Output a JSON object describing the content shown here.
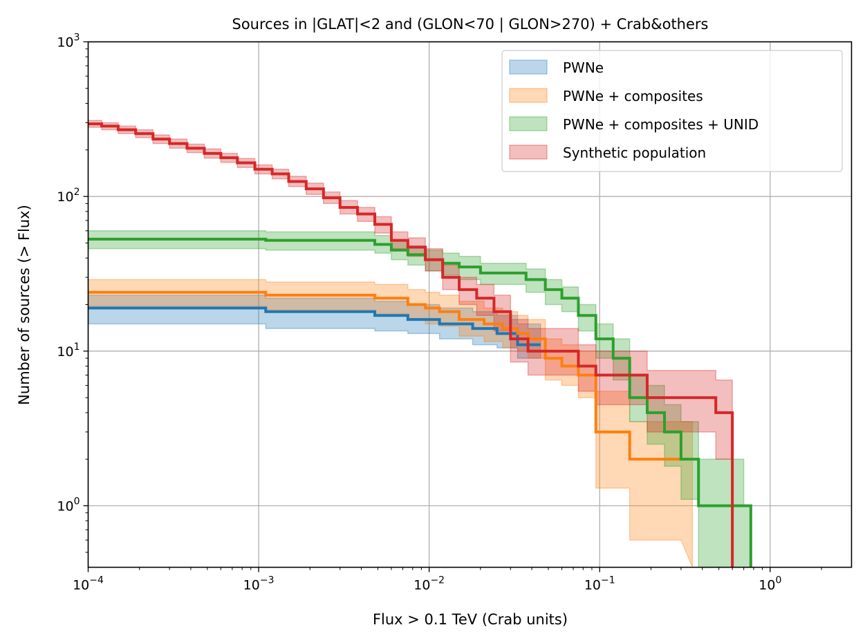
{
  "chart_data": {
    "type": "line",
    "title": "Sources in |GLAT|<2 and (GLON<70 | GLON>270) + Crab&others",
    "xlabel": "Flux > 0.1 TeV (Crab units)",
    "ylabel": "Number of sources (> Flux)",
    "xscale": "log",
    "yscale": "log",
    "xlim": [
      0.0001,
      3.0
    ],
    "ylim": [
      0.4,
      1000
    ],
    "grid": true,
    "legend_position": "top-right",
    "x_ticks": [
      {
        "value": 0.0001,
        "base": "10",
        "exp": "−4"
      },
      {
        "value": 0.001,
        "base": "10",
        "exp": "−3"
      },
      {
        "value": 0.01,
        "base": "10",
        "exp": "−2"
      },
      {
        "value": 0.1,
        "base": "10",
        "exp": "−1"
      },
      {
        "value": 1,
        "base": "10",
        "exp": "0"
      }
    ],
    "y_ticks": [
      {
        "value": 1,
        "base": "10",
        "exp": "0"
      },
      {
        "value": 10,
        "base": "10",
        "exp": "1"
      },
      {
        "value": 100,
        "base": "10",
        "exp": "2"
      },
      {
        "value": 1000,
        "base": "10",
        "exp": "3"
      }
    ],
    "series": [
      {
        "name": "PWNe",
        "color": "#1f77b4",
        "line_x": [
          0.0001,
          0.0011,
          0.0011,
          0.0048,
          0.0048,
          0.0075,
          0.0075,
          0.0115,
          0.0115,
          0.018,
          0.018,
          0.025,
          0.025,
          0.033,
          0.033,
          0.045
        ],
        "line_y": [
          19,
          19,
          18,
          18,
          17,
          17,
          16,
          16,
          15,
          15,
          14,
          14,
          13,
          13,
          11,
          11
        ],
        "band_x": [
          0.0001,
          0.0011,
          0.0011,
          0.0048,
          0.0048,
          0.0075,
          0.0075,
          0.0115,
          0.0115,
          0.018,
          0.018,
          0.025,
          0.025,
          0.033,
          0.033,
          0.045
        ],
        "band_upper": [
          23,
          23,
          22,
          22,
          21,
          21,
          20,
          20,
          19,
          19,
          18,
          18,
          17,
          17,
          15,
          15
        ],
        "band_lower": [
          15,
          15,
          14,
          14,
          13.5,
          13.5,
          13,
          13,
          12,
          12,
          11,
          11,
          10.5,
          10.5,
          9,
          9
        ]
      },
      {
        "name": "PWNe + composites",
        "color": "#ff7f0e",
        "line_x": [
          0.0001,
          0.0011,
          0.0011,
          0.0048,
          0.0048,
          0.0075,
          0.0075,
          0.0095,
          0.0095,
          0.0115,
          0.0115,
          0.015,
          0.015,
          0.021,
          0.021,
          0.027,
          0.027,
          0.033,
          0.033,
          0.038,
          0.038,
          0.048,
          0.048,
          0.06,
          0.06,
          0.075,
          0.075,
          0.095,
          0.095,
          0.15,
          0.15,
          0.3
        ],
        "line_y": [
          24,
          24,
          23,
          23,
          22,
          22,
          20,
          20,
          19,
          19,
          18,
          18,
          16,
          16,
          15,
          15,
          14,
          14,
          13,
          13,
          12,
          12,
          9,
          9,
          8,
          8,
          7,
          7,
          3,
          3,
          2,
          2
        ],
        "band_x": [
          0.0001,
          0.0011,
          0.0011,
          0.0048,
          0.0048,
          0.0075,
          0.0075,
          0.0095,
          0.0095,
          0.0115,
          0.0115,
          0.015,
          0.015,
          0.021,
          0.021,
          0.027,
          0.027,
          0.033,
          0.033,
          0.038,
          0.038,
          0.048,
          0.048,
          0.06,
          0.06,
          0.075,
          0.075,
          0.095,
          0.095,
          0.15,
          0.15,
          0.3,
          0.35
        ],
        "band_upper": [
          29,
          29,
          28,
          28,
          27,
          27,
          25,
          25,
          24,
          24,
          23,
          23,
          21,
          21,
          19,
          19,
          18,
          18,
          17,
          17,
          16,
          16,
          12,
          12,
          11,
          11,
          10,
          10,
          5.5,
          5.5,
          3.5,
          3.5,
          3.5
        ],
        "band_lower": [
          19.5,
          19.5,
          18.5,
          18.5,
          17.5,
          17.5,
          16,
          16,
          15,
          15,
          14.5,
          14.5,
          12.5,
          12.5,
          11.5,
          11.5,
          10.5,
          10.5,
          10,
          10,
          9,
          9,
          6.5,
          6.5,
          6,
          6,
          5,
          5,
          1.3,
          1.3,
          0.6,
          0.6,
          0.4
        ]
      },
      {
        "name": "PWNe + composites + UNID",
        "color": "#2ca02c",
        "line_x": [
          0.0001,
          0.0011,
          0.0011,
          0.0048,
          0.0048,
          0.006,
          0.006,
          0.0075,
          0.0075,
          0.0095,
          0.0095,
          0.012,
          0.012,
          0.015,
          0.015,
          0.02,
          0.02,
          0.037,
          0.037,
          0.048,
          0.048,
          0.06,
          0.06,
          0.075,
          0.075,
          0.095,
          0.095,
          0.12,
          0.12,
          0.15,
          0.15,
          0.19,
          0.19,
          0.24,
          0.24,
          0.3,
          0.3,
          0.38,
          0.38,
          0.77,
          0.77
        ],
        "line_y": [
          53,
          53,
          52,
          52,
          49,
          49,
          45,
          45,
          42,
          42,
          39,
          39,
          37,
          37,
          35,
          35,
          32,
          32,
          29,
          29,
          25,
          25,
          22,
          22,
          17,
          17,
          12,
          12,
          9,
          9,
          5,
          5,
          4,
          4,
          3,
          3,
          2,
          2,
          1,
          1,
          0.4
        ],
        "band_x": [
          0.0001,
          0.0011,
          0.0011,
          0.0048,
          0.0048,
          0.006,
          0.006,
          0.0075,
          0.0075,
          0.0095,
          0.0095,
          0.012,
          0.012,
          0.015,
          0.015,
          0.02,
          0.02,
          0.037,
          0.037,
          0.048,
          0.048,
          0.06,
          0.06,
          0.075,
          0.075,
          0.095,
          0.095,
          0.12,
          0.12,
          0.15,
          0.15,
          0.19,
          0.19,
          0.24,
          0.24,
          0.3,
          0.3,
          0.38,
          0.38,
          0.7,
          0.7,
          0.77
        ],
        "band_upper": [
          60,
          60,
          59,
          59,
          56,
          56,
          52,
          52,
          48,
          48,
          45,
          45,
          43,
          43,
          41,
          41,
          37,
          37,
          34,
          34,
          29,
          29,
          26,
          26,
          20,
          20,
          15,
          15,
          12,
          12,
          7,
          7,
          6,
          6,
          4.5,
          4.5,
          3.5,
          3.5,
          2,
          2,
          1,
          1
        ],
        "band_lower": [
          46,
          46,
          45,
          45,
          43,
          43,
          39,
          39,
          36,
          36,
          33,
          33,
          31,
          31,
          29,
          29,
          27,
          27,
          24,
          24,
          20,
          20,
          18,
          18,
          13.5,
          13.5,
          9,
          9,
          6.5,
          6.5,
          3.5,
          3.5,
          2.5,
          2.5,
          1.8,
          1.8,
          1.1,
          1.1,
          0.4,
          0.4,
          0.4,
          0.4
        ]
      },
      {
        "name": "Synthetic population",
        "color": "#d62728",
        "line_x": [
          0.0001,
          0.00012,
          0.00012,
          0.00015,
          0.00015,
          0.00019,
          0.00019,
          0.00024,
          0.00024,
          0.0003,
          0.0003,
          0.00038,
          0.00038,
          0.00048,
          0.00048,
          0.0006,
          0.0006,
          0.00075,
          0.00075,
          0.00095,
          0.00095,
          0.0012,
          0.0012,
          0.0015,
          0.0015,
          0.0019,
          0.0019,
          0.0024,
          0.0024,
          0.003,
          0.003,
          0.0038,
          0.0038,
          0.0048,
          0.0048,
          0.006,
          0.006,
          0.0075,
          0.0075,
          0.0095,
          0.0095,
          0.012,
          0.012,
          0.015,
          0.015,
          0.019,
          0.019,
          0.024,
          0.024,
          0.03,
          0.03,
          0.038,
          0.038,
          0.075,
          0.075,
          0.095,
          0.095,
          0.19,
          0.19,
          0.48,
          0.48,
          0.6,
          0.6
        ],
        "line_y": [
          295,
          295,
          285,
          285,
          270,
          270,
          255,
          255,
          235,
          235,
          220,
          220,
          205,
          205,
          190,
          190,
          178,
          178,
          165,
          165,
          150,
          150,
          140,
          140,
          125,
          125,
          112,
          112,
          98,
          98,
          85,
          85,
          77,
          77,
          66,
          66,
          52,
          52,
          47,
          47,
          39,
          39,
          30,
          30,
          25,
          25,
          22,
          22,
          18,
          18,
          12,
          12,
          10,
          10,
          8,
          8,
          7,
          7,
          5,
          5,
          4,
          4,
          0.4
        ],
        "band_x": [
          0.0001,
          0.00012,
          0.00012,
          0.00015,
          0.00015,
          0.00019,
          0.00019,
          0.00024,
          0.00024,
          0.0003,
          0.0003,
          0.00038,
          0.00038,
          0.00048,
          0.00048,
          0.0006,
          0.0006,
          0.00075,
          0.00075,
          0.00095,
          0.00095,
          0.0012,
          0.0012,
          0.0015,
          0.0015,
          0.0019,
          0.0019,
          0.0024,
          0.0024,
          0.003,
          0.003,
          0.0038,
          0.0038,
          0.0048,
          0.0048,
          0.006,
          0.006,
          0.0075,
          0.0075,
          0.0095,
          0.0095,
          0.012,
          0.012,
          0.015,
          0.015,
          0.019,
          0.019,
          0.024,
          0.024,
          0.03,
          0.03,
          0.038,
          0.038,
          0.075,
          0.075,
          0.095,
          0.095,
          0.19,
          0.19,
          0.48,
          0.48,
          0.6,
          0.6
        ],
        "band_upper": [
          310,
          310,
          300,
          300,
          285,
          285,
          270,
          270,
          250,
          250,
          235,
          235,
          218,
          218,
          203,
          203,
          190,
          190,
          176,
          176,
          160,
          160,
          150,
          150,
          135,
          135,
          122,
          122,
          107,
          107,
          94,
          94,
          85,
          85,
          74,
          74,
          59,
          59,
          54,
          54,
          46,
          46,
          36,
          36,
          30,
          30,
          27,
          27,
          23,
          23,
          16,
          16,
          14,
          14,
          11,
          11,
          10,
          10,
          7.5,
          7.5,
          6.5,
          6.5,
          2.5
        ],
        "band_lower": [
          280,
          280,
          270,
          270,
          255,
          255,
          240,
          240,
          220,
          220,
          205,
          205,
          192,
          192,
          177,
          177,
          166,
          166,
          154,
          154,
          140,
          140,
          130,
          130,
          116,
          116,
          103,
          103,
          90,
          90,
          77,
          77,
          69,
          69,
          58,
          58,
          46,
          46,
          41,
          41,
          33,
          33,
          25,
          25,
          20,
          20,
          17,
          17,
          13.5,
          13.5,
          8.5,
          8.5,
          7,
          7,
          5.5,
          5.5,
          4.5,
          4.5,
          3,
          3,
          2,
          2,
          0.4
        ]
      }
    ]
  }
}
